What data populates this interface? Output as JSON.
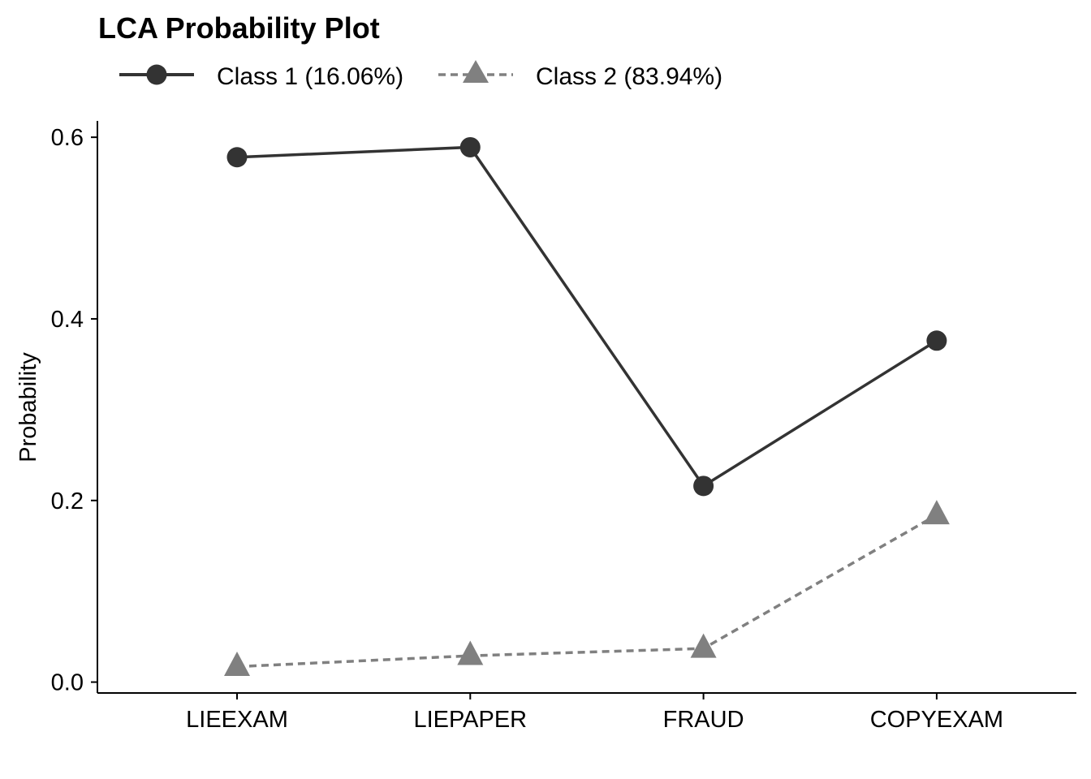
{
  "chart_data": {
    "type": "line",
    "title": "LCA Probability Plot",
    "xlabel": "",
    "ylabel": "Probability",
    "categories": [
      "LIEEXAM",
      "LIEPAPER",
      "FRAUD",
      "COPYEXAM"
    ],
    "ylim": [
      -0.012,
      0.618
    ],
    "yticks": [
      0.0,
      0.2,
      0.4,
      0.6
    ],
    "ytick_labels": [
      "0.0",
      "0.2",
      "0.4",
      "0.6"
    ],
    "grid": false,
    "legend_position": "top-left",
    "series": [
      {
        "name": "Class 1 (16.06%)",
        "values": [
          0.578,
          0.589,
          0.216,
          0.376
        ],
        "marker": "circle",
        "line_style": "solid",
        "color": "#333333"
      },
      {
        "name": "Class 2 (83.94%)",
        "values": [
          0.017,
          0.029,
          0.037,
          0.184
        ],
        "marker": "triangle",
        "line_style": "dashed",
        "color": "#808080"
      }
    ]
  }
}
